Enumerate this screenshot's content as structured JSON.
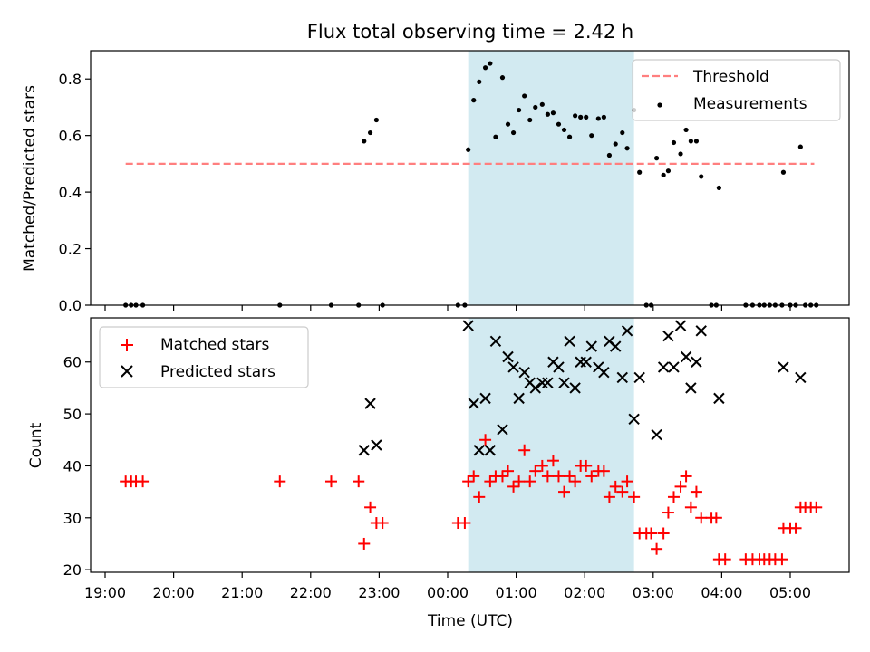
{
  "figure": {
    "title": "Flux total observing time = 2.42 h"
  },
  "chart_data": [
    {
      "type": "scatter",
      "ylabel": "Matched/Predicted stars",
      "xlabel": "",
      "ylim": [
        0,
        0.9
      ],
      "yticks": [
        "0.0",
        "0.2",
        "0.4",
        "0.6",
        "0.8"
      ],
      "legend": "top-right",
      "shaded_span_hours": [
        24.3,
        26.72
      ],
      "shade_color": "#add8e6",
      "threshold": {
        "name": "Threshold",
        "value": 0.5,
        "x_range_hours": [
          19.3,
          29.35
        ],
        "color": "#ff7f7f"
      },
      "series": [
        {
          "name": "Measurements",
          "color": "#000000",
          "points": [
            [
              19.3,
              0
            ],
            [
              19.38,
              0
            ],
            [
              19.45,
              0
            ],
            [
              19.55,
              0
            ],
            [
              21.55,
              0
            ],
            [
              22.3,
              0
            ],
            [
              22.7,
              0
            ],
            [
              23.05,
              0
            ],
            [
              24.15,
              0
            ],
            [
              24.25,
              0
            ],
            [
              22.78,
              0.58
            ],
            [
              22.87,
              0.61
            ],
            [
              22.96,
              0.655
            ],
            [
              24.3,
              0.55
            ],
            [
              24.38,
              0.725
            ],
            [
              24.46,
              0.79
            ],
            [
              24.55,
              0.84
            ],
            [
              24.62,
              0.855
            ],
            [
              24.7,
              0.595
            ],
            [
              24.8,
              0.805
            ],
            [
              24.88,
              0.64
            ],
            [
              24.96,
              0.61
            ],
            [
              25.04,
              0.69
            ],
            [
              25.12,
              0.74
            ],
            [
              25.2,
              0.655
            ],
            [
              25.28,
              0.7
            ],
            [
              25.38,
              0.71
            ],
            [
              25.46,
              0.675
            ],
            [
              25.54,
              0.68
            ],
            [
              25.62,
              0.64
            ],
            [
              25.7,
              0.62
            ],
            [
              25.78,
              0.595
            ],
            [
              25.86,
              0.67
            ],
            [
              25.94,
              0.665
            ],
            [
              26.02,
              0.665
            ],
            [
              26.1,
              0.6
            ],
            [
              26.2,
              0.66
            ],
            [
              26.28,
              0.665
            ],
            [
              26.36,
              0.53
            ],
            [
              26.45,
              0.57
            ],
            [
              26.55,
              0.61
            ],
            [
              26.62,
              0.555
            ],
            [
              26.72,
              0.69
            ],
            [
              26.8,
              0.47
            ],
            [
              26.9,
              0
            ],
            [
              26.97,
              0
            ],
            [
              27.05,
              0.52
            ],
            [
              27.15,
              0.46
            ],
            [
              27.22,
              0.475
            ],
            [
              27.3,
              0.575
            ],
            [
              27.4,
              0.535
            ],
            [
              27.48,
              0.62
            ],
            [
              27.55,
              0.58
            ],
            [
              27.63,
              0.58
            ],
            [
              27.7,
              0.455
            ],
            [
              27.85,
              0
            ],
            [
              27.92,
              0
            ],
            [
              27.96,
              0.415
            ],
            [
              28.35,
              0
            ],
            [
              28.45,
              0
            ],
            [
              28.55,
              0
            ],
            [
              28.62,
              0
            ],
            [
              28.7,
              0
            ],
            [
              28.78,
              0
            ],
            [
              28.88,
              0
            ],
            [
              28.9,
              0.47
            ],
            [
              29.0,
              0
            ],
            [
              29.08,
              0
            ],
            [
              29.15,
              0.56
            ],
            [
              29.22,
              0
            ],
            [
              29.3,
              0
            ],
            [
              29.38,
              0
            ]
          ]
        }
      ]
    },
    {
      "type": "scatter",
      "xlabel": "Time (UTC)",
      "ylabel": "Count",
      "ylim": [
        19.5,
        68.5
      ],
      "yticks": [
        "20",
        "30",
        "40",
        "50",
        "60"
      ],
      "legend": "top-left",
      "shaded_span_hours": [
        24.3,
        26.72
      ],
      "xticks": [
        "19:00",
        "20:00",
        "21:00",
        "22:00",
        "23:00",
        "00:00",
        "01:00",
        "02:00",
        "03:00",
        "04:00",
        "05:00"
      ],
      "series": [
        {
          "name": "Matched stars",
          "marker": "plus",
          "color": "#ff0000",
          "points": [
            [
              19.3,
              37
            ],
            [
              19.38,
              37
            ],
            [
              19.45,
              37
            ],
            [
              19.55,
              37
            ],
            [
              21.55,
              37
            ],
            [
              22.3,
              37
            ],
            [
              22.7,
              37
            ],
            [
              22.78,
              25
            ],
            [
              22.87,
              32
            ],
            [
              22.96,
              29
            ],
            [
              23.05,
              29
            ],
            [
              24.15,
              29
            ],
            [
              24.25,
              29
            ],
            [
              24.3,
              37
            ],
            [
              24.38,
              38
            ],
            [
              24.46,
              34
            ],
            [
              24.55,
              45
            ],
            [
              24.62,
              37
            ],
            [
              24.7,
              38
            ],
            [
              24.8,
              38
            ],
            [
              24.88,
              39
            ],
            [
              24.96,
              36
            ],
            [
              25.04,
              37
            ],
            [
              25.12,
              43
            ],
            [
              25.2,
              37
            ],
            [
              25.28,
              39
            ],
            [
              25.38,
              40
            ],
            [
              25.46,
              38
            ],
            [
              25.54,
              41
            ],
            [
              25.62,
              38
            ],
            [
              25.7,
              35
            ],
            [
              25.78,
              38
            ],
            [
              25.86,
              37
            ],
            [
              25.94,
              40
            ],
            [
              26.02,
              40
            ],
            [
              26.1,
              38
            ],
            [
              26.2,
              39
            ],
            [
              26.28,
              39
            ],
            [
              26.36,
              34
            ],
            [
              26.45,
              36
            ],
            [
              26.55,
              35
            ],
            [
              26.62,
              37
            ],
            [
              26.72,
              34
            ],
            [
              26.8,
              27
            ],
            [
              26.9,
              27
            ],
            [
              26.97,
              27
            ],
            [
              27.05,
              24
            ],
            [
              27.15,
              27
            ],
            [
              27.22,
              31
            ],
            [
              27.3,
              34
            ],
            [
              27.4,
              36
            ],
            [
              27.48,
              38
            ],
            [
              27.55,
              32
            ],
            [
              27.63,
              35
            ],
            [
              27.7,
              30
            ],
            [
              27.85,
              30
            ],
            [
              27.92,
              30
            ],
            [
              27.96,
              22
            ],
            [
              28.05,
              22
            ],
            [
              28.35,
              22
            ],
            [
              28.45,
              22
            ],
            [
              28.55,
              22
            ],
            [
              28.62,
              22
            ],
            [
              28.7,
              22
            ],
            [
              28.78,
              22
            ],
            [
              28.88,
              22
            ],
            [
              28.9,
              28
            ],
            [
              29.0,
              28
            ],
            [
              29.08,
              28
            ],
            [
              29.15,
              32
            ],
            [
              29.22,
              32
            ],
            [
              29.3,
              32
            ],
            [
              29.38,
              32
            ]
          ]
        },
        {
          "name": "Predicted stars",
          "marker": "x",
          "color": "#000000",
          "points": [
            [
              22.78,
              43
            ],
            [
              22.87,
              52
            ],
            [
              22.96,
              44
            ],
            [
              24.3,
              67
            ],
            [
              24.38,
              52
            ],
            [
              24.46,
              43
            ],
            [
              24.55,
              53
            ],
            [
              24.62,
              43
            ],
            [
              24.7,
              64
            ],
            [
              24.8,
              47
            ],
            [
              24.88,
              61
            ],
            [
              24.96,
              59
            ],
            [
              25.04,
              53
            ],
            [
              25.12,
              58
            ],
            [
              25.2,
              56
            ],
            [
              25.28,
              55
            ],
            [
              25.38,
              56
            ],
            [
              25.46,
              56
            ],
            [
              25.54,
              60
            ],
            [
              25.62,
              59
            ],
            [
              25.7,
              56
            ],
            [
              25.78,
              64
            ],
            [
              25.86,
              55
            ],
            [
              25.94,
              60
            ],
            [
              26.02,
              60
            ],
            [
              26.1,
              63
            ],
            [
              26.2,
              59
            ],
            [
              26.28,
              58
            ],
            [
              26.36,
              64
            ],
            [
              26.45,
              63
            ],
            [
              26.55,
              57
            ],
            [
              26.62,
              66
            ],
            [
              26.72,
              49
            ],
            [
              26.8,
              57
            ],
            [
              27.05,
              46
            ],
            [
              27.15,
              59
            ],
            [
              27.22,
              65
            ],
            [
              27.3,
              59
            ],
            [
              27.4,
              67
            ],
            [
              27.48,
              61
            ],
            [
              27.55,
              55
            ],
            [
              27.63,
              60
            ],
            [
              27.7,
              66
            ],
            [
              27.96,
              53
            ],
            [
              28.9,
              59
            ],
            [
              29.15,
              57
            ]
          ]
        }
      ]
    }
  ]
}
